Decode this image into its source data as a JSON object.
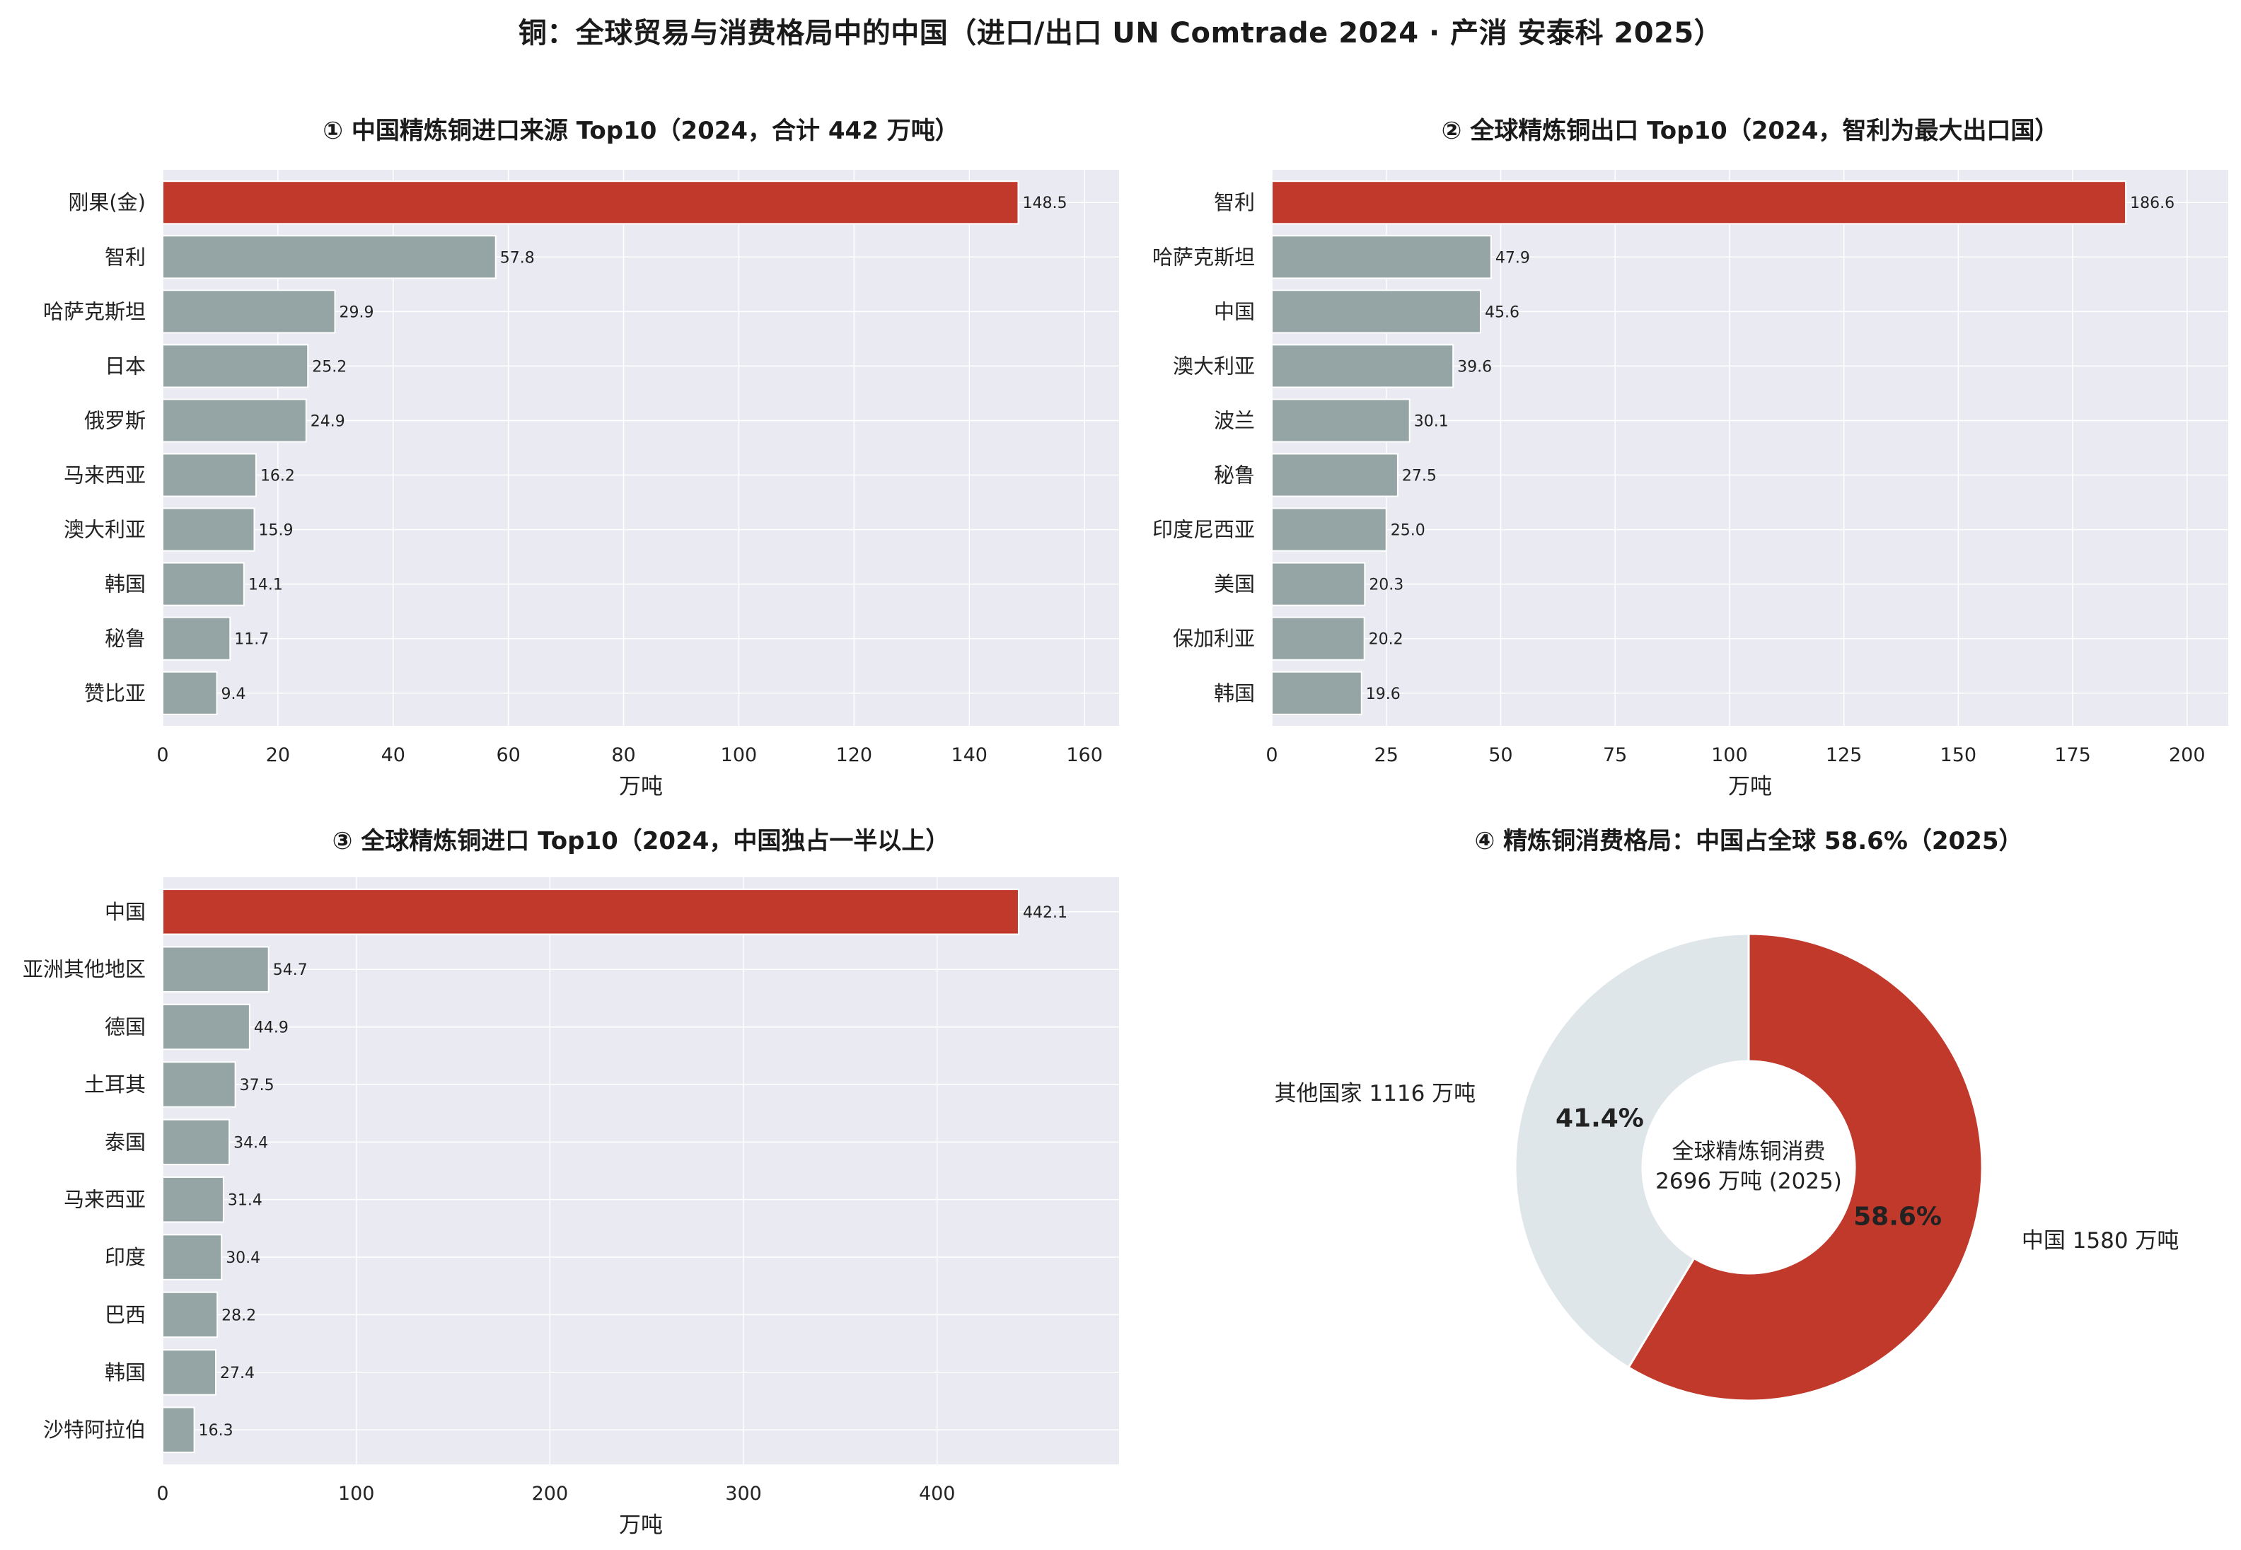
{
  "suptitle": "铜：全球贸易与消费格局中的中国（进口/出口 UN Comtrade 2024 · 产消 安泰科 2025）",
  "colors": {
    "highlight": "#c0392b",
    "bar": "#95a5a6",
    "plot_bg": "#eaeaf2",
    "grid": "#ffffff",
    "donut_other": "#dfe6e9"
  },
  "chart_data": [
    {
      "type": "bar",
      "orientation": "horizontal",
      "title": "① 中国精炼铜进口来源 Top10（2024，合计 442 万吨）",
      "xlabel": "万吨",
      "xlim": [
        0,
        166
      ],
      "xticks": [
        0,
        20,
        40,
        60,
        80,
        100,
        120,
        140,
        160
      ],
      "highlight_index": 0,
      "categories": [
        "刚果(金)",
        "智利",
        "哈萨克斯坦",
        "日本",
        "俄罗斯",
        "马来西亚",
        "澳大利亚",
        "韩国",
        "秘鲁",
        "赞比亚"
      ],
      "values": [
        148.5,
        57.8,
        29.9,
        25.2,
        24.9,
        16.2,
        15.9,
        14.1,
        11.7,
        9.4
      ],
      "value_labels": [
        "148.5",
        "57.8",
        "29.9",
        "25.2",
        "24.9",
        "16.2",
        "15.9",
        "14.1",
        "11.7",
        "9.4"
      ]
    },
    {
      "type": "bar",
      "orientation": "horizontal",
      "title": "② 全球精炼铜出口 Top10（2024，智利为最大出口国）",
      "xlabel": "万吨",
      "xlim": [
        0,
        209
      ],
      "xticks": [
        0,
        25,
        50,
        75,
        100,
        125,
        150,
        175,
        200
      ],
      "highlight_index": 0,
      "categories": [
        "智利",
        "哈萨克斯坦",
        "中国",
        "澳大利亚",
        "波兰",
        "秘鲁",
        "印度尼西亚",
        "美国",
        "保加利亚",
        "韩国"
      ],
      "values": [
        186.6,
        47.9,
        45.6,
        39.6,
        30.1,
        27.5,
        25.0,
        20.3,
        20.2,
        19.6
      ],
      "value_labels": [
        "186.6",
        "47.9",
        "45.6",
        "39.6",
        "30.1",
        "27.5",
        "25.0",
        "20.3",
        "20.2",
        "19.6"
      ]
    },
    {
      "type": "bar",
      "orientation": "horizontal",
      "title": "③ 全球精炼铜进口 Top10（2024，中国独占一半以上）",
      "xlabel": "万吨",
      "xlim": [
        0,
        494
      ],
      "xticks": [
        0,
        100,
        200,
        300,
        400
      ],
      "highlight_index": 0,
      "categories": [
        "中国",
        "亚洲其他地区",
        "德国",
        "土耳其",
        "泰国",
        "马来西亚",
        "印度",
        "巴西",
        "韩国",
        "沙特阿拉伯"
      ],
      "values": [
        442.1,
        54.7,
        44.9,
        37.5,
        34.4,
        31.4,
        30.4,
        28.2,
        27.4,
        16.3
      ],
      "value_labels": [
        "442.1",
        "54.7",
        "44.9",
        "37.5",
        "34.4",
        "31.4",
        "30.4",
        "28.2",
        "27.4",
        "16.3"
      ]
    },
    {
      "type": "pie",
      "donut": true,
      "title": "④ 精炼铜消费格局：中国占全球 58.6%（2025）",
      "center_lines": [
        "全球精炼铜消费",
        "2696 万吨 (2025)"
      ],
      "slices": [
        {
          "label": "中国 1580 万吨",
          "value": 1580,
          "pct_label": "58.6%",
          "color": "#c0392b"
        },
        {
          "label": "其他国家 1116 万吨",
          "value": 1116,
          "pct_label": "41.4%",
          "color": "#dfe6e9"
        }
      ]
    }
  ]
}
